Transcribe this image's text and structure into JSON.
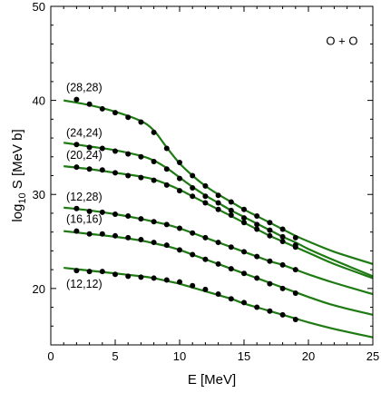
{
  "chart_data": {
    "type": "scatter",
    "annotation": "O + O",
    "xlabel": "E [MeV]",
    "ylabel_parts": {
      "pre": "log",
      "sub": "10",
      "post": " S [MeV b]"
    },
    "xlim": [
      0,
      25
    ],
    "ylim": [
      14,
      50
    ],
    "xticks": [
      0,
      5,
      10,
      15,
      20,
      25
    ],
    "yticks": [
      20,
      30,
      40,
      50
    ],
    "colors": {
      "curve": "#1e7a12",
      "points": "#000000",
      "axis": "#000000"
    },
    "series": [
      {
        "label": "(28,28)",
        "points": [
          [
            2,
            40.1
          ],
          [
            3,
            39.6
          ],
          [
            4,
            39.1
          ],
          [
            5,
            38.7
          ],
          [
            6,
            38.2
          ],
          [
            7,
            37.7
          ],
          [
            8,
            36.6
          ],
          [
            9,
            34.9
          ],
          [
            10,
            33.4
          ],
          [
            11,
            32.0
          ],
          [
            12,
            30.9
          ],
          [
            13,
            29.9
          ],
          [
            14,
            29.2
          ],
          [
            15,
            28.4
          ],
          [
            16,
            27.7
          ],
          [
            17,
            27.0
          ],
          [
            18,
            26.3
          ],
          [
            19,
            25.4
          ]
        ],
        "curve": [
          [
            1,
            40.0
          ],
          [
            3,
            39.5
          ],
          [
            5,
            38.8
          ],
          [
            7,
            37.8
          ],
          [
            8,
            36.8
          ],
          [
            9,
            35.0
          ],
          [
            10,
            33.3
          ],
          [
            11,
            32.0
          ],
          [
            12,
            30.9
          ],
          [
            13,
            30.0
          ],
          [
            14,
            29.2
          ],
          [
            15,
            28.4
          ],
          [
            16,
            27.7
          ],
          [
            17,
            27.0
          ],
          [
            18,
            26.3
          ],
          [
            19,
            25.6
          ],
          [
            20,
            25.0
          ],
          [
            22,
            23.9
          ],
          [
            25,
            22.6
          ]
        ]
      },
      {
        "label": "(24,24)",
        "points": [
          [
            2,
            35.3
          ],
          [
            3,
            35.0
          ],
          [
            4,
            34.9
          ],
          [
            5,
            34.6
          ],
          [
            6,
            34.3
          ],
          [
            7,
            34.0
          ],
          [
            8,
            33.5
          ],
          [
            9,
            32.7
          ],
          [
            10,
            31.7
          ],
          [
            11,
            30.7
          ],
          [
            12,
            29.8
          ],
          [
            13,
            29.1
          ],
          [
            14,
            28.3
          ],
          [
            15,
            27.5
          ],
          [
            16,
            26.8
          ],
          [
            17,
            26.2
          ],
          [
            18,
            25.5
          ],
          [
            19,
            24.6
          ]
        ],
        "curve": [
          [
            1,
            35.5
          ],
          [
            3,
            35.1
          ],
          [
            5,
            34.7
          ],
          [
            7,
            34.1
          ],
          [
            8,
            33.6
          ],
          [
            9,
            32.8
          ],
          [
            10,
            31.8
          ],
          [
            11,
            30.8
          ],
          [
            12,
            29.9
          ],
          [
            13,
            29.1
          ],
          [
            14,
            28.3
          ],
          [
            15,
            27.6
          ],
          [
            16,
            26.9
          ],
          [
            17,
            26.2
          ],
          [
            18,
            25.5
          ],
          [
            19,
            24.9
          ],
          [
            20,
            24.2
          ],
          [
            22,
            23.0
          ],
          [
            25,
            21.3
          ]
        ]
      },
      {
        "label": "(20,24)",
        "points": [
          [
            2,
            32.9
          ],
          [
            3,
            32.7
          ],
          [
            4,
            32.6
          ],
          [
            5,
            32.3
          ],
          [
            6,
            32.0
          ],
          [
            7,
            31.8
          ],
          [
            8,
            31.5
          ],
          [
            9,
            31.0
          ],
          [
            10,
            30.4
          ],
          [
            11,
            29.8
          ],
          [
            12,
            29.1
          ],
          [
            13,
            28.4
          ],
          [
            14,
            27.8
          ],
          [
            15,
            27.0
          ],
          [
            16,
            26.3
          ],
          [
            17,
            25.6
          ],
          [
            18,
            25.0
          ],
          [
            19,
            24.4
          ]
        ],
        "curve": [
          [
            1,
            33.0
          ],
          [
            3,
            32.7
          ],
          [
            5,
            32.3
          ],
          [
            7,
            31.9
          ],
          [
            8,
            31.6
          ],
          [
            9,
            31.1
          ],
          [
            10,
            30.5
          ],
          [
            11,
            29.8
          ],
          [
            12,
            29.1
          ],
          [
            13,
            28.4
          ],
          [
            14,
            27.7
          ],
          [
            15,
            27.0
          ],
          [
            16,
            26.3
          ],
          [
            17,
            25.6
          ],
          [
            18,
            25.0
          ],
          [
            19,
            24.4
          ],
          [
            20,
            23.8
          ],
          [
            22,
            22.6
          ],
          [
            25,
            21.1
          ]
        ]
      },
      {
        "label": "(12,28)",
        "points": [
          [
            2,
            28.5
          ],
          [
            3,
            28.2
          ],
          [
            4,
            28.1
          ],
          [
            5,
            27.9
          ],
          [
            6,
            27.7
          ],
          [
            7,
            27.4
          ],
          [
            8,
            27.1
          ],
          [
            9,
            26.8
          ],
          [
            10,
            26.4
          ],
          [
            11,
            25.9
          ],
          [
            12,
            25.4
          ],
          [
            13,
            24.9
          ],
          [
            14,
            24.4
          ],
          [
            15,
            23.9
          ],
          [
            16,
            23.4
          ],
          [
            17,
            22.9
          ],
          [
            18,
            22.5
          ],
          [
            19,
            22.0
          ]
        ],
        "curve": [
          [
            1,
            28.6
          ],
          [
            3,
            28.3
          ],
          [
            5,
            27.9
          ],
          [
            7,
            27.4
          ],
          [
            8,
            27.1
          ],
          [
            9,
            26.8
          ],
          [
            10,
            26.4
          ],
          [
            11,
            25.9
          ],
          [
            12,
            25.4
          ],
          [
            13,
            24.9
          ],
          [
            14,
            24.4
          ],
          [
            15,
            23.9
          ],
          [
            16,
            23.4
          ],
          [
            17,
            22.9
          ],
          [
            18,
            22.5
          ],
          [
            19,
            22.0
          ],
          [
            20,
            21.5
          ],
          [
            22,
            20.6
          ],
          [
            25,
            19.4
          ]
        ]
      },
      {
        "label": "(16,16)",
        "points": [
          [
            2,
            26.1
          ],
          [
            3,
            25.8
          ],
          [
            4,
            25.8
          ],
          [
            5,
            25.6
          ],
          [
            6,
            25.4
          ],
          [
            7,
            25.2
          ],
          [
            8,
            24.9
          ],
          [
            9,
            24.6
          ],
          [
            10,
            24.1
          ],
          [
            11,
            23.6
          ],
          [
            12,
            23.1
          ],
          [
            13,
            22.6
          ],
          [
            14,
            22.1
          ],
          [
            15,
            21.6
          ],
          [
            16,
            21.1
          ],
          [
            17,
            20.5
          ],
          [
            18,
            20.0
          ],
          [
            19,
            19.5
          ]
        ],
        "curve": [
          [
            1,
            26.1
          ],
          [
            3,
            25.8
          ],
          [
            5,
            25.5
          ],
          [
            7,
            25.1
          ],
          [
            8,
            24.8
          ],
          [
            9,
            24.5
          ],
          [
            10,
            24.1
          ],
          [
            11,
            23.6
          ],
          [
            12,
            23.1
          ],
          [
            13,
            22.6
          ],
          [
            14,
            22.1
          ],
          [
            15,
            21.6
          ],
          [
            16,
            21.1
          ],
          [
            17,
            20.6
          ],
          [
            18,
            20.1
          ],
          [
            19,
            19.6
          ],
          [
            20,
            19.1
          ],
          [
            22,
            18.2
          ],
          [
            25,
            17.2
          ]
        ]
      },
      {
        "label": "(12,12)",
        "points": [
          [
            2,
            21.9
          ],
          [
            3,
            21.8
          ],
          [
            4,
            21.8
          ],
          [
            5,
            21.5
          ],
          [
            6,
            21.3
          ],
          [
            7,
            21.2
          ],
          [
            8,
            21.1
          ],
          [
            9,
            20.9
          ],
          [
            10,
            20.7
          ],
          [
            11,
            20.3
          ],
          [
            12,
            19.9
          ],
          [
            13,
            19.4
          ],
          [
            14,
            18.9
          ],
          [
            15,
            18.5
          ],
          [
            16,
            18.0
          ],
          [
            17,
            17.6
          ],
          [
            18,
            17.2
          ],
          [
            19,
            16.7
          ]
        ],
        "curve": [
          [
            1,
            22.2
          ],
          [
            3,
            21.9
          ],
          [
            5,
            21.6
          ],
          [
            7,
            21.3
          ],
          [
            8,
            21.1
          ],
          [
            9,
            20.8
          ],
          [
            10,
            20.5
          ],
          [
            11,
            20.1
          ],
          [
            12,
            19.7
          ],
          [
            13,
            19.3
          ],
          [
            14,
            18.9
          ],
          [
            15,
            18.4
          ],
          [
            16,
            18.0
          ],
          [
            17,
            17.6
          ],
          [
            18,
            17.2
          ],
          [
            19,
            16.8
          ],
          [
            20,
            16.4
          ],
          [
            22,
            15.7
          ],
          [
            25,
            14.8
          ]
        ]
      }
    ]
  }
}
